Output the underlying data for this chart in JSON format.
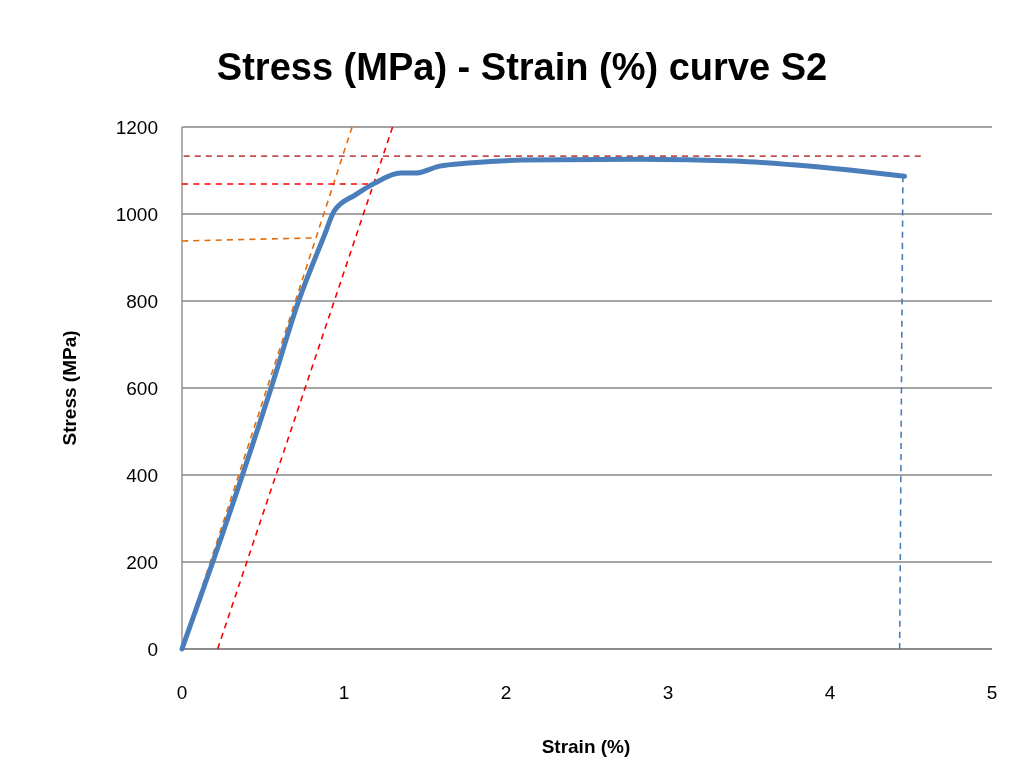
{
  "chart_data": {
    "type": "line",
    "title": "Stress (MPa) - Strain (%) curve S2",
    "xlabel": "Strain (%)",
    "ylabel": "Stress (MPa)",
    "xlim": [
      0,
      5
    ],
    "ylim": [
      0,
      1200
    ],
    "xticks": [
      0,
      1,
      2,
      3,
      4,
      5
    ],
    "yticks": [
      0,
      200,
      400,
      600,
      800,
      1000,
      1200
    ],
    "grid": "y",
    "marker": "none",
    "series": [
      {
        "color": "#e46c0a",
        "line_style": "dashed",
        "x": [
          0,
          1.05
        ],
        "values": [
          0,
          1200
        ]
      },
      {
        "color": "#e46c0a",
        "line_style": "dashed",
        "x": [
          0,
          0.8
        ],
        "values": [
          938,
          945
        ]
      },
      {
        "color": "#ff0000",
        "line_style": "dashed",
        "x": [
          0.22,
          1.3
        ],
        "values": [
          0,
          1200
        ]
      },
      {
        "color": "#ff0000",
        "line_style": "dashed",
        "x": [
          0,
          1.15
        ],
        "values": [
          1069,
          1069
        ]
      },
      {
        "color": "#c0504d",
        "line_style": "dashed",
        "x": [
          0.01,
          4.56
        ],
        "values": [
          1133,
          1133
        ]
      },
      {
        "color": "#4a7ebb",
        "line_style": "dashed",
        "x": [
          4.43,
          4.45
        ],
        "values": [
          0,
          1087
        ]
      },
      {
        "color": "#4a7ebb",
        "line_style": "solid",
        "x": [
          0,
          0.19,
          0.55,
          0.72,
          0.88,
          0.94,
          1.07,
          1.19,
          1.35,
          1.44,
          1.59,
          1.77,
          2.1,
          2.82,
          3.41,
          3.77,
          4.12,
          4.46
        ],
        "values": [
          0,
          200,
          600,
          800,
          952,
          1007,
          1044,
          1071,
          1094,
          1094,
          1110,
          1117,
          1124,
          1126,
          1122,
          1113,
          1101,
          1087
        ]
      }
    ]
  }
}
